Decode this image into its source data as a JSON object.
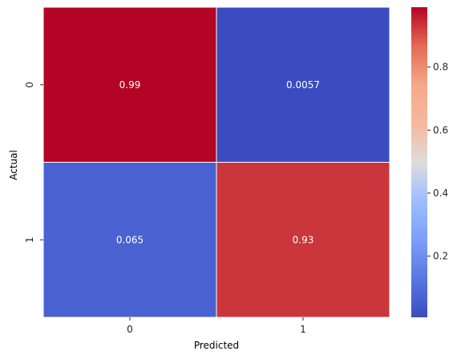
{
  "chart_data": {
    "type": "heatmap",
    "xlabel": "Predicted",
    "ylabel": "Actual",
    "x_categories": [
      "0",
      "1"
    ],
    "y_categories": [
      "0",
      "1"
    ],
    "values": [
      [
        0.99,
        0.0057
      ],
      [
        0.065,
        0.93
      ]
    ],
    "annotations": [
      [
        "0.99",
        "0.0057"
      ],
      [
        "0.065",
        "0.93"
      ]
    ],
    "colormap": "coolwarm",
    "colorbar": {
      "min": 0.0057,
      "max": 0.99,
      "ticks": [
        0.2,
        0.4,
        0.6,
        0.8
      ],
      "tick_labels": [
        "0.2",
        "0.4",
        "0.6",
        "0.8"
      ]
    },
    "cell_border_color": "#ffffff",
    "annotation_color": "#ffffff"
  }
}
